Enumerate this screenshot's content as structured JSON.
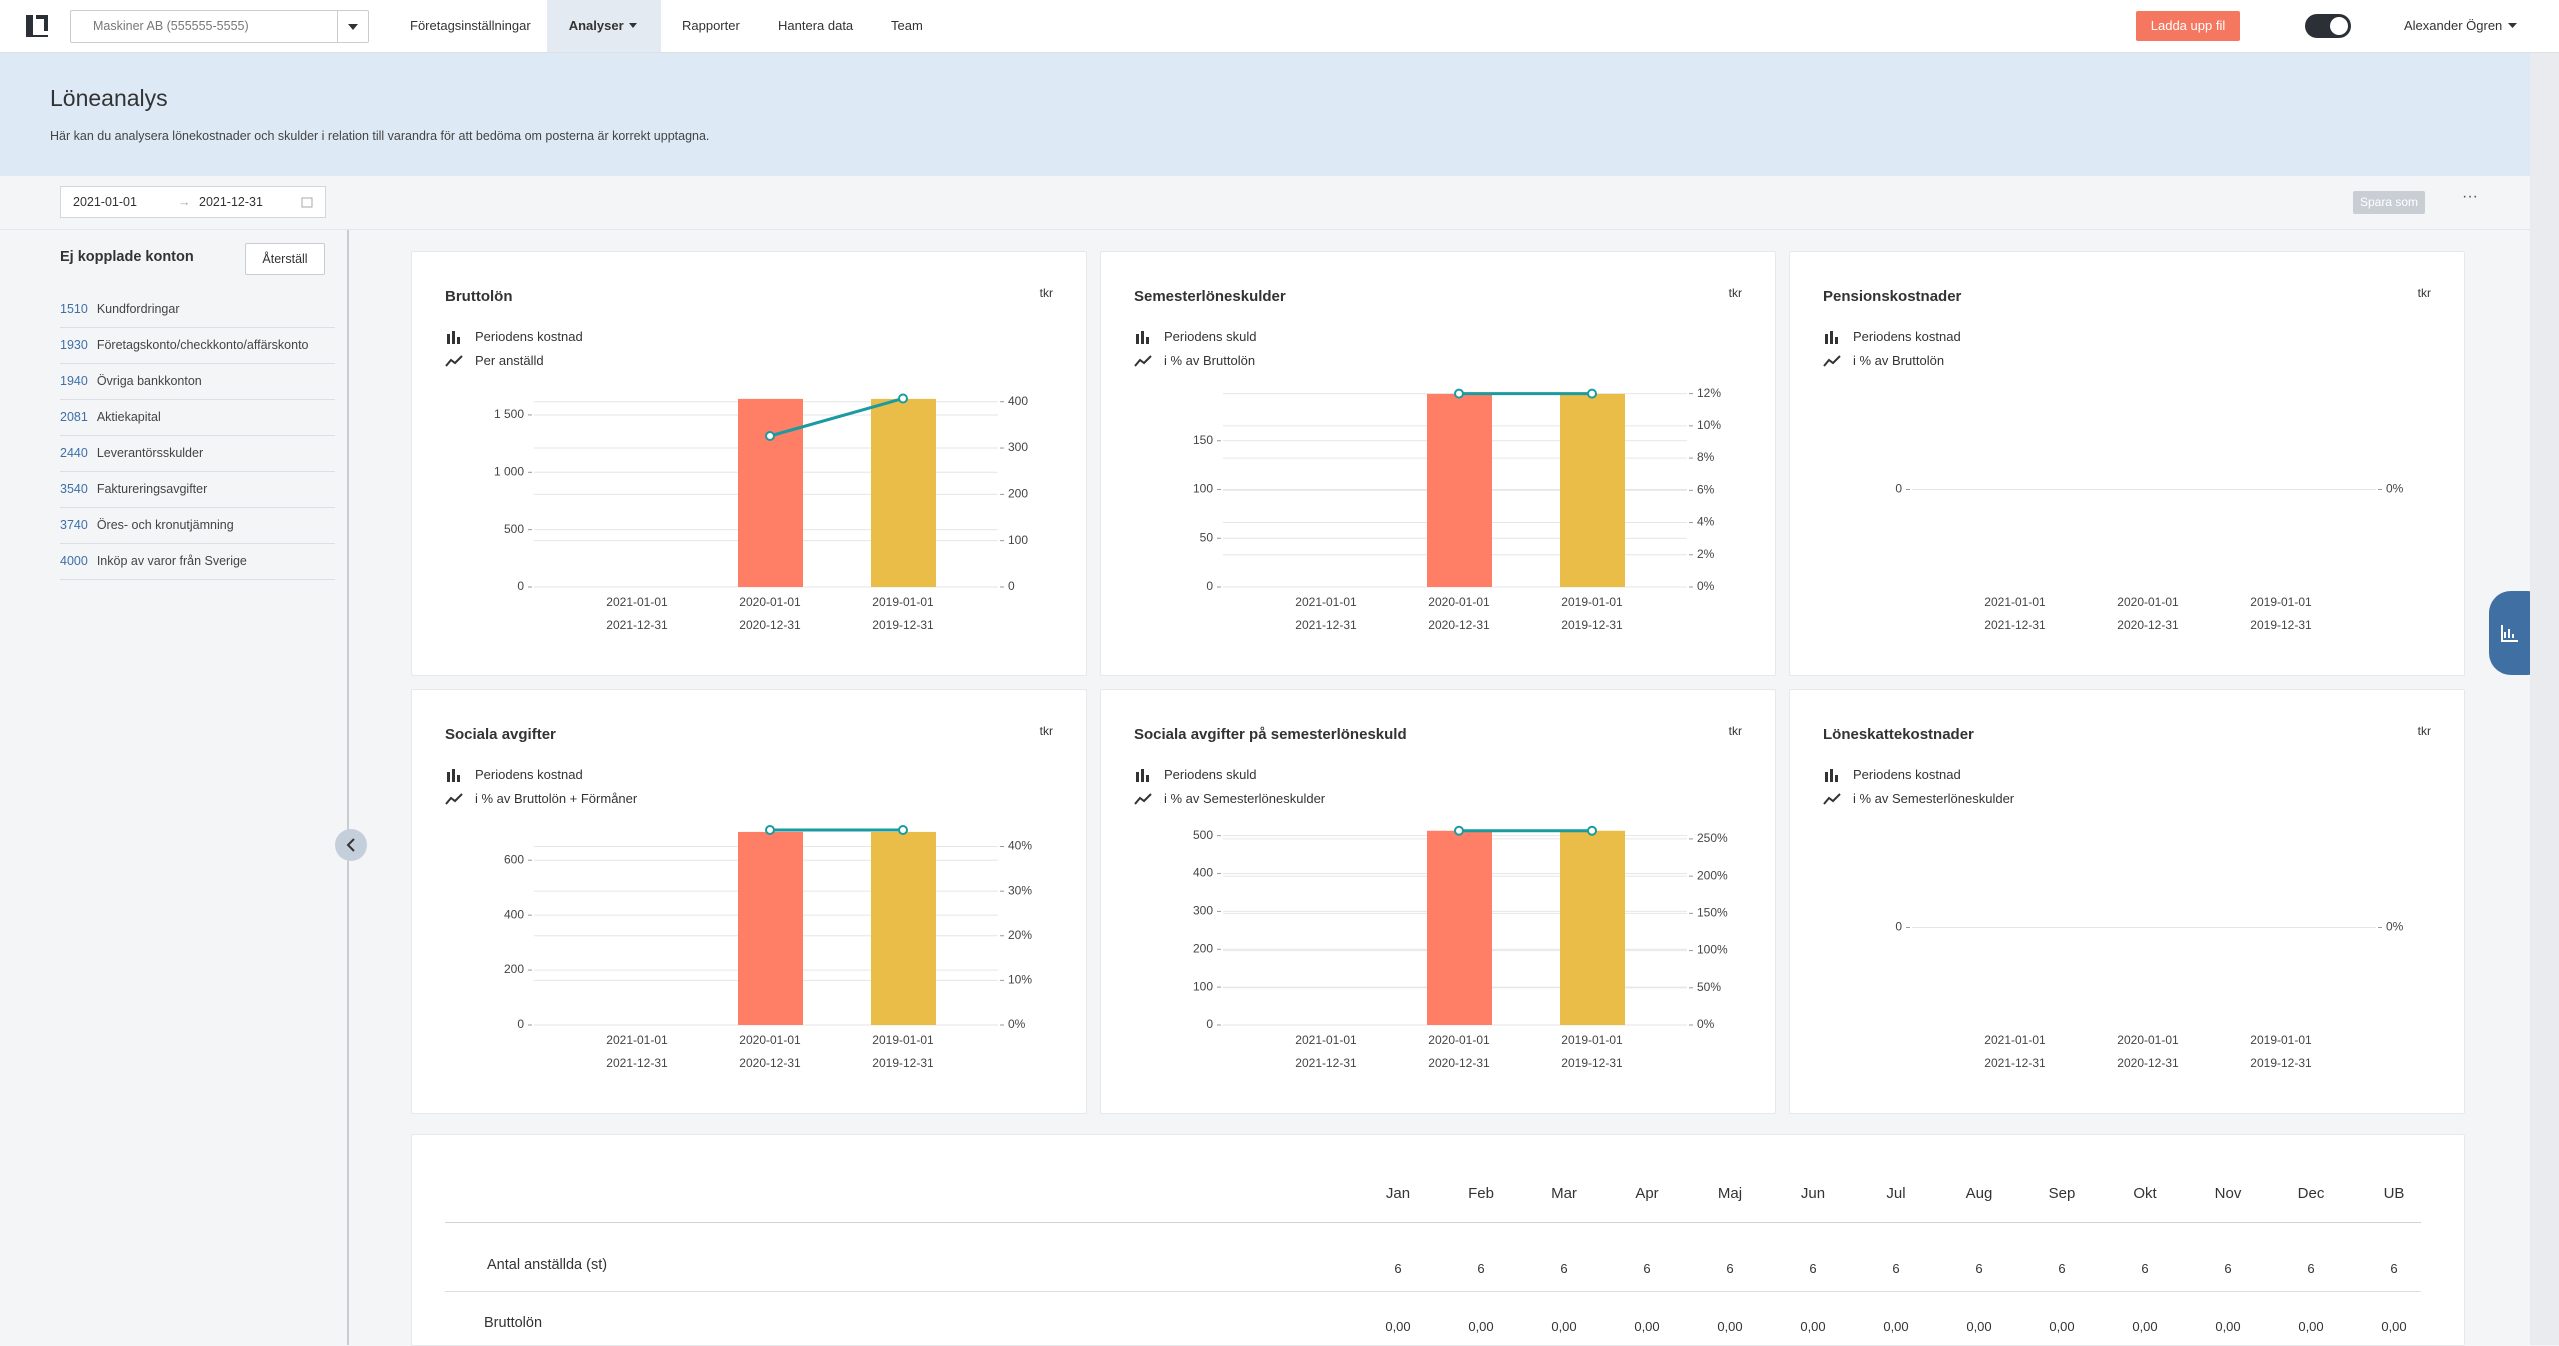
{
  "nav": {
    "company": "Maskiner AB (555555-5555)",
    "items": [
      "Företagsinställningar",
      "Analyser",
      "Rapporter",
      "Hantera data",
      "Team"
    ],
    "upload": "Ladda upp fil",
    "user": "Alexander Ögren"
  },
  "header": {
    "title": "Löneanalys",
    "description": "Här kan du analysera lönekostnader och skulder i relation till varandra för att bedöma om posterna är korrekt upptagna."
  },
  "toolbar": {
    "date_from": "2021-01-01",
    "date_to": "2021-12-31",
    "save": "Spara som"
  },
  "sidebar": {
    "title": "Ej kopplade konton",
    "reset": "Återställ",
    "accounts": [
      {
        "number": "1510",
        "name": "Kundfordringar"
      },
      {
        "number": "1930",
        "name": "Företagskonto/checkkonto/affärskonto"
      },
      {
        "number": "1940",
        "name": "Övriga bankkonton"
      },
      {
        "number": "2081",
        "name": "Aktiekapital"
      },
      {
        "number": "2440",
        "name": "Leverantörsskulder"
      },
      {
        "number": "3540",
        "name": "Faktureringsavgifter"
      },
      {
        "number": "3740",
        "name": "Öres- och kronutjämning"
      },
      {
        "number": "4000",
        "name": "Inköp av varor från Sverige"
      }
    ]
  },
  "chart_data": [
    {
      "type": "bar-line",
      "title": "Bruttolön",
      "unit": "tkr",
      "categories": [
        {
          "from": "2021-01-01",
          "to": "2021-12-31"
        },
        {
          "from": "2020-01-01",
          "to": "2020-12-31"
        },
        {
          "from": "2019-01-01",
          "to": "2019-12-31"
        }
      ],
      "series": [
        {
          "name": "Periodens kostnad",
          "type": "bar",
          "colors": [
            "#ff7f66",
            "#ff7f66",
            "#e9bd48"
          ],
          "values": [
            0,
            1640,
            1640
          ]
        },
        {
          "name": "Per anställd",
          "type": "line",
          "color": "#1a9ba1",
          "axis": "y2",
          "values": [
            null,
            326,
            407
          ]
        }
      ],
      "ylim": [
        0,
        1700
      ],
      "yticks": [
        0,
        500,
        {
          "value": 1000,
          "label": "1 000"
        },
        {
          "value": 1500,
          "label": "1 500"
        }
      ],
      "y2lim": [
        0,
        421
      ],
      "y2ticks": [
        0,
        100,
        200,
        300,
        400
      ],
      "grid": true
    },
    {
      "type": "bar-line",
      "title": "Semesterlöneskulder",
      "unit": "tkr",
      "categories": [
        {
          "from": "2021-01-01",
          "to": "2021-12-31"
        },
        {
          "from": "2020-01-01",
          "to": "2020-12-31"
        },
        {
          "from": "2019-01-01",
          "to": "2019-12-31"
        }
      ],
      "series": [
        {
          "name": "Periodens skuld",
          "type": "bar",
          "colors": [
            "#ff7f66",
            "#ff7f66",
            "#e9bd48"
          ],
          "values": [
            0,
            198,
            198
          ]
        },
        {
          "name": "i % av Bruttolön",
          "type": "line",
          "color": "#1a9ba1",
          "axis": "y2",
          "values": [
            null,
            12,
            12
          ]
        }
      ],
      "ylim": [
        0,
        200
      ],
      "yticks": [
        0,
        50,
        100,
        150
      ],
      "y2lim": [
        0,
        12.1
      ],
      "y2ticks": [
        {
          "value": 0,
          "label": "0%"
        },
        {
          "value": 2,
          "label": "2%"
        },
        {
          "value": 4,
          "label": "4%"
        },
        {
          "value": 6,
          "label": "6%"
        },
        {
          "value": 8,
          "label": "8%"
        },
        {
          "value": 10,
          "label": "10%"
        },
        {
          "value": 12,
          "label": "12%"
        }
      ],
      "grid": true
    },
    {
      "type": "bar-line",
      "title": "Pensionskostnader",
      "unit": "tkr",
      "categories": [
        {
          "from": "2021-01-01",
          "to": "2021-12-31"
        },
        {
          "from": "2020-01-01",
          "to": "2020-12-31"
        },
        {
          "from": "2019-01-01",
          "to": "2019-12-31"
        }
      ],
      "series": [
        {
          "name": "Periodens kostnad",
          "type": "bar",
          "colors": [
            "#ff7f66",
            "#ff7f66",
            "#e9bd48"
          ],
          "values": [
            0,
            0,
            0
          ]
        },
        {
          "name": "i % av Bruttolön",
          "type": "line",
          "color": "#1a9ba1",
          "axis": "y2",
          "values": [
            null,
            null,
            null
          ]
        }
      ],
      "ylim": [
        -1,
        1
      ],
      "yticks": [
        0
      ],
      "y2lim": [
        -1,
        1
      ],
      "y2ticks": [
        {
          "value": 0,
          "label": "0%"
        }
      ],
      "grid": true
    },
    {
      "type": "bar-line",
      "title": "Sociala avgifter",
      "unit": "tkr",
      "categories": [
        {
          "from": "2021-01-01",
          "to": "2021-12-31"
        },
        {
          "from": "2020-01-01",
          "to": "2020-12-31"
        },
        {
          "from": "2019-01-01",
          "to": "2019-12-31"
        }
      ],
      "series": [
        {
          "name": "Periodens kostnad",
          "type": "bar",
          "colors": [
            "#ff7f66",
            "#ff7f66",
            "#e9bd48"
          ],
          "values": [
            0,
            703,
            703
          ]
        },
        {
          "name": "i % av Bruttolön + Förmåner",
          "type": "line",
          "color": "#1a9ba1",
          "axis": "y2",
          "values": [
            null,
            43.7,
            43.7
          ]
        }
      ],
      "ylim": [
        0,
        710
      ],
      "yticks": [
        0,
        200,
        400,
        600
      ],
      "y2lim": [
        0,
        43.7
      ],
      "y2ticks": [
        {
          "value": 0,
          "label": "0%"
        },
        {
          "value": 10,
          "label": "10%"
        },
        {
          "value": 20,
          "label": "20%"
        },
        {
          "value": 30,
          "label": "30%"
        },
        {
          "value": 40,
          "label": "40%"
        }
      ],
      "grid": true
    },
    {
      "type": "bar-line",
      "title": "Sociala avgifter på semesterlöneskuld",
      "unit": "tkr",
      "categories": [
        {
          "from": "2021-01-01",
          "to": "2021-12-31"
        },
        {
          "from": "2020-01-01",
          "to": "2020-12-31"
        },
        {
          "from": "2019-01-01",
          "to": "2019-12-31"
        }
      ],
      "series": [
        {
          "name": "Periodens skuld",
          "type": "bar",
          "colors": [
            "#ff7f66",
            "#ff7f66",
            "#e9bd48"
          ],
          "values": [
            0,
            513,
            513
          ]
        },
        {
          "name": "i % av Semesterlöneskulder",
          "type": "line",
          "color": "#1a9ba1",
          "axis": "y2",
          "values": [
            null,
            261,
            261
          ]
        }
      ],
      "ylim": [
        0,
        515
      ],
      "yticks": [
        0,
        100,
        200,
        300,
        400,
        500
      ],
      "y2lim": [
        0,
        262
      ],
      "y2ticks": [
        {
          "value": 0,
          "label": "0%"
        },
        {
          "value": 50,
          "label": "50%"
        },
        {
          "value": 100,
          "label": "100%"
        },
        {
          "value": 150,
          "label": "150%"
        },
        {
          "value": 200,
          "label": "200%"
        },
        {
          "value": 250,
          "label": "250%"
        }
      ],
      "grid": true
    },
    {
      "type": "bar-line",
      "title": "Löneskattekostnader",
      "unit": "tkr",
      "categories": [
        {
          "from": "2021-01-01",
          "to": "2021-12-31"
        },
        {
          "from": "2020-01-01",
          "to": "2020-12-31"
        },
        {
          "from": "2019-01-01",
          "to": "2019-12-31"
        }
      ],
      "series": [
        {
          "name": "Periodens kostnad",
          "type": "bar",
          "colors": [
            "#ff7f66",
            "#ff7f66",
            "#e9bd48"
          ],
          "values": [
            0,
            0,
            0
          ]
        },
        {
          "name": "i % av Semesterlöneskulder",
          "type": "line",
          "color": "#1a9ba1",
          "axis": "y2",
          "values": [
            null,
            null,
            null
          ]
        }
      ],
      "ylim": [
        -1,
        1
      ],
      "yticks": [
        0
      ],
      "y2lim": [
        -1,
        1
      ],
      "y2ticks": [
        {
          "value": 0,
          "label": "0%"
        }
      ],
      "grid": true
    }
  ],
  "table": {
    "columns": [
      "Jan",
      "Feb",
      "Mar",
      "Apr",
      "Maj",
      "Jun",
      "Jul",
      "Aug",
      "Sep",
      "Okt",
      "Nov",
      "Dec",
      "UB"
    ],
    "rows": [
      {
        "label": "Antal anställda (st)",
        "values": [
          6,
          6,
          6,
          6,
          6,
          6,
          6,
          6,
          6,
          6,
          6,
          6,
          6
        ]
      },
      {
        "label": "Bruttolön",
        "values": [
          "0,00",
          "0,00",
          "0,00",
          "0,00",
          "0,00",
          "0,00",
          "0,00",
          "0,00",
          "0,00",
          "0,00",
          "0,00",
          "0,00",
          "0,00"
        ]
      }
    ]
  }
}
